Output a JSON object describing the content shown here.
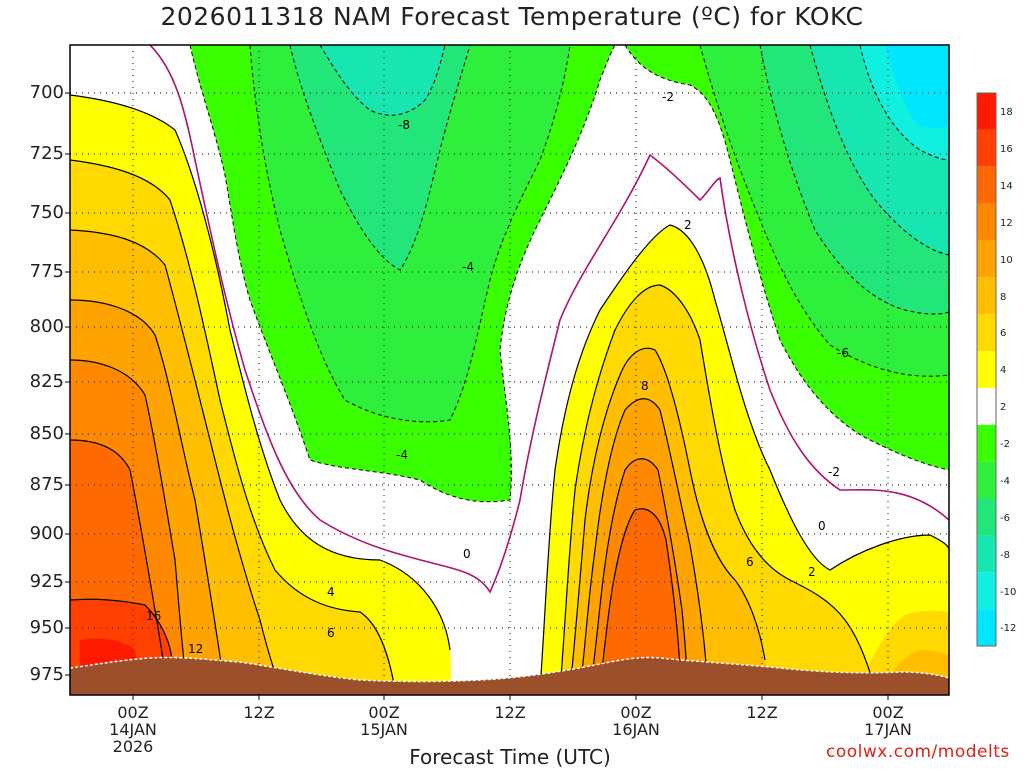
{
  "title": "2026011318 NAM Forecast Temperature (ºC) for KOKC",
  "x_axis_title": "Forecast Time (UTC)",
  "credit": "coolwx.com/modelts",
  "y_ticks": [
    "700",
    "725",
    "750",
    "775",
    "800",
    "825",
    "850",
    "875",
    "900",
    "925",
    "950",
    "975"
  ],
  "x_ticks": [
    {
      "l1": "00Z",
      "l2": "14JAN",
      "l3": "2026"
    },
    {
      "l1": "12Z",
      "l2": "",
      "l3": ""
    },
    {
      "l1": "00Z",
      "l2": "15JAN",
      "l3": ""
    },
    {
      "l1": "12Z",
      "l2": "",
      "l3": ""
    },
    {
      "l1": "00Z",
      "l2": "16JAN",
      "l3": ""
    },
    {
      "l1": "12Z",
      "l2": "",
      "l3": ""
    },
    {
      "l1": "00Z",
      "l2": "17JAN",
      "l3": ""
    }
  ],
  "colorbar": {
    "labels": [
      "18",
      "16",
      "14",
      "12",
      "10",
      "8",
      "6",
      "4",
      "2",
      "-2",
      "-4",
      "-6",
      "-8",
      "-10",
      "-12"
    ],
    "colors": [
      "#ff1a00",
      "#ff4000",
      "#ff6a00",
      "#ff8800",
      "#ffa300",
      "#ffbf00",
      "#ffd900",
      "#ffff00",
      "#ffffff",
      "#3aff00",
      "#2ef03c",
      "#22e67a",
      "#18e6b0",
      "#10f0e0",
      "#00e6ff"
    ]
  },
  "chart_data": {
    "type": "heatmap",
    "title": "2026011318 NAM Forecast Temperature (ºC) for KOKC",
    "xlabel": "Forecast Time (UTC)",
    "ylabel": "",
    "y_range_hPa": [
      680,
      985
    ],
    "x_range": [
      "2026-01-13 18Z",
      "2026-01-17 06Z"
    ],
    "contour_labels": [
      {
        "value": "16",
        "time": "14JAN 00Z+",
        "pressure": 940
      },
      {
        "value": "12",
        "time": "14JAN 06Z",
        "pressure": 965
      },
      {
        "value": "4",
        "time": "14JAN 18Z",
        "pressure": 934
      },
      {
        "value": "6",
        "time": "14JAN 18Z",
        "pressure": 957
      },
      {
        "value": "0",
        "time": "15JAN 06Z",
        "pressure": 904
      },
      {
        "value": "-4",
        "time": "15JAN 00Z",
        "pressure": 862
      },
      {
        "value": "-8",
        "time": "15JAN 00Z",
        "pressure": 718
      },
      {
        "value": "-4",
        "time": "15JAN 06Z",
        "pressure": 770
      },
      {
        "value": "-2",
        "time": "16JAN 00Z",
        "pressure": 702
      },
      {
        "value": "2",
        "time": "16JAN 03Z",
        "pressure": 756
      },
      {
        "value": "8",
        "time": "16JAN 00Z",
        "pressure": 834
      },
      {
        "value": "6",
        "time": "16JAN 06Z",
        "pressure": 920
      },
      {
        "value": "-6",
        "time": "16JAN 21Z",
        "pressure": 808
      },
      {
        "value": "-2",
        "time": "16JAN 18Z",
        "pressure": 872
      },
      {
        "value": "0",
        "time": "16JAN 15Z",
        "pressure": 896
      },
      {
        "value": "2",
        "time": "16JAN 15Z",
        "pressure": 926
      }
    ],
    "grid": true
  }
}
